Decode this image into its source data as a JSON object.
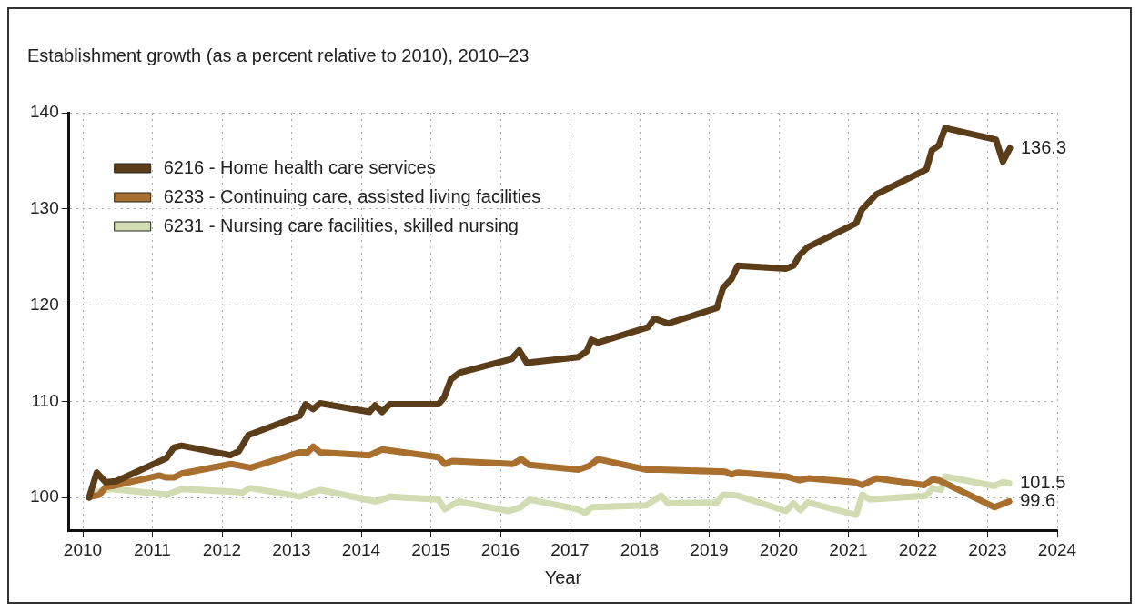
{
  "chart_data": {
    "type": "line",
    "title": "Establishment growth (as a percent relative to 2010), 2010–23",
    "xlabel": "Year",
    "xlim": [
      2009.8,
      2024
    ],
    "xticks": [
      2010,
      2011,
      2012,
      2013,
      2014,
      2015,
      2016,
      2017,
      2018,
      2019,
      2020,
      2021,
      2022,
      2023,
      2024
    ],
    "ylim": [
      96.6,
      140
    ],
    "yticks": [
      100,
      110,
      120,
      130,
      140
    ],
    "grid": true,
    "legend": "top left",
    "marker": "none",
    "line_style": "solid",
    "series": [
      {
        "name": "6216 - Home health care services",
        "color": "#5c3d1a",
        "x": [
          2010.09,
          2010.2,
          2010.33,
          2010.48,
          2011.2,
          2011.31,
          2011.42,
          2012.12,
          2012.24,
          2012.38,
          2013.12,
          2013.2,
          2013.31,
          2013.41,
          2014.12,
          2014.2,
          2014.3,
          2014.41,
          2015.11,
          2015.19,
          2015.29,
          2015.42,
          2016.16,
          2016.27,
          2016.38,
          2017.12,
          2017.24,
          2017.31,
          2017.4,
          2018.12,
          2018.21,
          2018.41,
          2019.11,
          2019.2,
          2019.32,
          2019.41,
          2020.1,
          2020.21,
          2020.3,
          2020.41,
          2021.11,
          2021.19,
          2021.4,
          2022.12,
          2022.2,
          2022.3,
          2022.39,
          2023.12,
          2023.22,
          2023.32
        ],
        "values": [
          100,
          102.6,
          101.6,
          101.7,
          104.1,
          105.2,
          105.4,
          104.4,
          104.8,
          106.5,
          108.5,
          109.7,
          109.2,
          109.8,
          108.9,
          109.6,
          108.9,
          109.7,
          109.7,
          110.4,
          112.3,
          113,
          114.4,
          115.3,
          114,
          114.6,
          115.2,
          116.4,
          116.1,
          117.7,
          118.6,
          118.1,
          119.7,
          121.8,
          122.7,
          124.1,
          123.8,
          124.1,
          125.2,
          126,
          128.5,
          129.9,
          131.5,
          134.1,
          136.1,
          136.6,
          138.4,
          137.2,
          134.9,
          136.3
        ],
        "value_labels": [
          null,
          null,
          null,
          null,
          null,
          null,
          null,
          null,
          null,
          null,
          null,
          null,
          null,
          null,
          null,
          null,
          null,
          null,
          null,
          null,
          null,
          null,
          null,
          null,
          null,
          null,
          null,
          null,
          null,
          null,
          null,
          null,
          null,
          null,
          null,
          null,
          null,
          null,
          null,
          null,
          null,
          null,
          null,
          null,
          null,
          null,
          null,
          null,
          null,
          "136.3"
        ]
      },
      {
        "name": "6233 - Continuing care, assisted living facilities",
        "color": "#a86f2e",
        "x": [
          2010.12,
          2010.24,
          2010.33,
          2010.42,
          2011.1,
          2011.19,
          2011.31,
          2011.42,
          2012.13,
          2012.41,
          2013.11,
          2013.23,
          2013.31,
          2013.41,
          2014.12,
          2014.21,
          2014.3,
          2015.11,
          2015.2,
          2015.31,
          2016.18,
          2016.3,
          2016.41,
          2017.12,
          2017.28,
          2017.4,
          2018.1,
          2018.29,
          2019.23,
          2019.32,
          2019.41,
          2020.1,
          2020.3,
          2020.42,
          2021.08,
          2021.2,
          2021.4,
          2022.09,
          2022.21,
          2022.3,
          2023.1,
          2023.31
        ],
        "values": [
          100.1,
          100.3,
          101.1,
          101.2,
          102.3,
          102.1,
          102.1,
          102.5,
          103.5,
          103.1,
          104.7,
          104.7,
          105.3,
          104.7,
          104.4,
          104.7,
          105,
          104.2,
          103.5,
          103.8,
          103.5,
          104,
          103.4,
          102.9,
          103.3,
          104,
          102.9,
          102.9,
          102.7,
          102.4,
          102.6,
          102.2,
          101.8,
          102,
          101.6,
          101.3,
          102,
          101.3,
          101.9,
          101.8,
          99,
          99.6
        ],
        "value_labels": [
          null,
          null,
          null,
          null,
          null,
          null,
          null,
          null,
          null,
          null,
          null,
          null,
          null,
          null,
          null,
          null,
          null,
          null,
          null,
          null,
          null,
          null,
          null,
          null,
          null,
          null,
          null,
          null,
          null,
          null,
          null,
          null,
          null,
          null,
          null,
          null,
          null,
          null,
          null,
          null,
          null,
          "99.6"
        ]
      },
      {
        "name": "6231 - Nursing care facilities, skilled nursing",
        "color": "#d2dcb3",
        "x": [
          2010.12,
          2010.3,
          2010.42,
          2011.22,
          2011.42,
          2012.17,
          2012.29,
          2012.4,
          2013.12,
          2013.2,
          2013.41,
          2014.21,
          2014.3,
          2014.42,
          2015.11,
          2015.2,
          2015.4,
          2016.12,
          2016.29,
          2016.42,
          2017.1,
          2017.22,
          2017.31,
          2018.1,
          2018.31,
          2018.41,
          2019.11,
          2019.2,
          2019.41,
          2020.1,
          2020.21,
          2020.31,
          2020.42,
          2021.11,
          2021.2,
          2021.31,
          2022.12,
          2022.21,
          2022.33,
          2022.39,
          2023.1,
          2023.22,
          2023.31
        ],
        "values": [
          100.3,
          100.8,
          100.9,
          100.3,
          100.9,
          100.6,
          100.5,
          101,
          100.1,
          100.3,
          100.8,
          99.6,
          99.8,
          100.1,
          99.8,
          98.8,
          99.6,
          98.6,
          99,
          99.8,
          98.8,
          98.4,
          99,
          99.2,
          100.2,
          99.4,
          99.5,
          100.3,
          100.2,
          98.6,
          99.4,
          98.7,
          99.5,
          98.2,
          100.3,
          99.8,
          100.2,
          101,
          100.8,
          102.2,
          101.2,
          101.6,
          101.5
        ],
        "value_labels": [
          null,
          null,
          null,
          null,
          null,
          null,
          null,
          null,
          null,
          null,
          null,
          null,
          null,
          null,
          null,
          null,
          null,
          null,
          null,
          null,
          null,
          null,
          null,
          null,
          null,
          null,
          null,
          null,
          null,
          null,
          null,
          null,
          null,
          null,
          null,
          null,
          null,
          null,
          null,
          null,
          null,
          null,
          "101.5"
        ]
      }
    ]
  }
}
